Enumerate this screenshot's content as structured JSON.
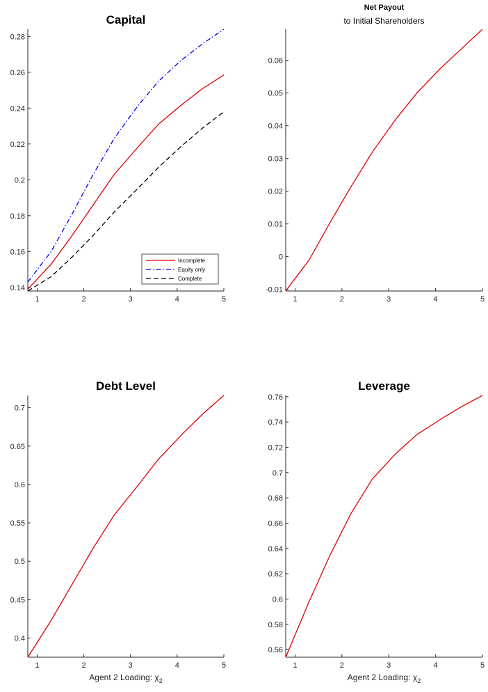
{
  "chart_data": [
    {
      "type": "line",
      "title": "Capital",
      "subtitle": "",
      "xlabel": "",
      "xlabel_sub": "",
      "xlim": [
        0.8,
        5
      ],
      "ylim": [
        0.138,
        0.284
      ],
      "xticks": [
        1,
        2,
        3,
        4,
        5
      ],
      "yticks": [
        0.14,
        0.16,
        0.18,
        0.2,
        0.22,
        0.24,
        0.26,
        0.28
      ],
      "legend_position": "bottom-right",
      "x": [
        0.8,
        1.3,
        1.75,
        2.2,
        2.65,
        3.15,
        3.6,
        4.1,
        4.55,
        5.0
      ],
      "series": [
        {
          "name": "Incomplete",
          "color": "#e00000",
          "dash": "solid",
          "values": [
            0.139,
            0.153,
            0.169,
            0.186,
            0.203,
            0.218,
            0.231,
            0.242,
            0.251,
            0.2585
          ]
        },
        {
          "name": "Equity only",
          "color": "#0000e0",
          "dash": "dashdot",
          "values": [
            0.143,
            0.16,
            0.181,
            0.203,
            0.223,
            0.241,
            0.255,
            0.267,
            0.276,
            0.284
          ]
        },
        {
          "name": "Complete",
          "color": "#000000",
          "dash": "dashed",
          "values": [
            0.138,
            0.146,
            0.157,
            0.169,
            0.182,
            0.195,
            0.207,
            0.219,
            0.229,
            0.238
          ]
        }
      ]
    },
    {
      "type": "line",
      "title": "Net Payout",
      "subtitle": "to Initial Shareholders",
      "xlabel": "",
      "xlabel_sub": "",
      "xlim": [
        0.8,
        5
      ],
      "ylim": [
        -0.0105,
        0.0695
      ],
      "xticks": [
        1,
        2,
        3,
        4,
        5
      ],
      "yticks": [
        -0.01,
        0,
        0.01,
        0.02,
        0.03,
        0.04,
        0.05,
        0.06
      ],
      "legend_position": "",
      "x": [
        0.8,
        1.3,
        1.75,
        2.2,
        2.65,
        3.15,
        3.6,
        4.1,
        4.55,
        5.0
      ],
      "series": [
        {
          "name": "",
          "color": "#e00000",
          "dash": "solid",
          "values": [
            -0.0105,
            -0.001,
            0.0105,
            0.0215,
            0.032,
            0.042,
            0.05,
            0.0575,
            0.0635,
            0.0695
          ]
        }
      ]
    },
    {
      "type": "line",
      "title": "Debt Level",
      "subtitle": "",
      "xlabel": "Agent 2 Loading: χ",
      "xlabel_sub": "2",
      "xlim": [
        0.8,
        5
      ],
      "ylim": [
        0.375,
        0.716
      ],
      "xticks": [
        1,
        2,
        3,
        4,
        5
      ],
      "yticks": [
        0.4,
        0.45,
        0.5,
        0.55,
        0.6,
        0.65,
        0.7
      ],
      "legend_position": "",
      "x": [
        0.8,
        1.3,
        1.75,
        2.2,
        2.65,
        3.15,
        3.6,
        4.1,
        4.55,
        5.0
      ],
      "series": [
        {
          "name": "",
          "color": "#e00000",
          "dash": "solid",
          "values": [
            0.375,
            0.423,
            0.47,
            0.517,
            0.56,
            0.598,
            0.633,
            0.665,
            0.692,
            0.716
          ]
        }
      ]
    },
    {
      "type": "line",
      "title": "Leverage",
      "subtitle": "",
      "xlabel": "Agent 2 Loading: χ",
      "xlabel_sub": "2",
      "xlim": [
        0.8,
        5
      ],
      "ylim": [
        0.554,
        0.761
      ],
      "xticks": [
        1,
        2,
        3,
        4,
        5
      ],
      "yticks": [
        0.56,
        0.58,
        0.6,
        0.62,
        0.64,
        0.66,
        0.68,
        0.7,
        0.72,
        0.74,
        0.76
      ],
      "legend_position": "",
      "x": [
        0.8,
        1.3,
        1.75,
        2.2,
        2.65,
        3.15,
        3.6,
        4.1,
        4.55,
        5.0
      ],
      "series": [
        {
          "name": "",
          "color": "#e00000",
          "dash": "solid",
          "values": [
            0.554,
            0.598,
            0.635,
            0.668,
            0.695,
            0.715,
            0.73,
            0.742,
            0.752,
            0.761
          ]
        }
      ]
    }
  ]
}
